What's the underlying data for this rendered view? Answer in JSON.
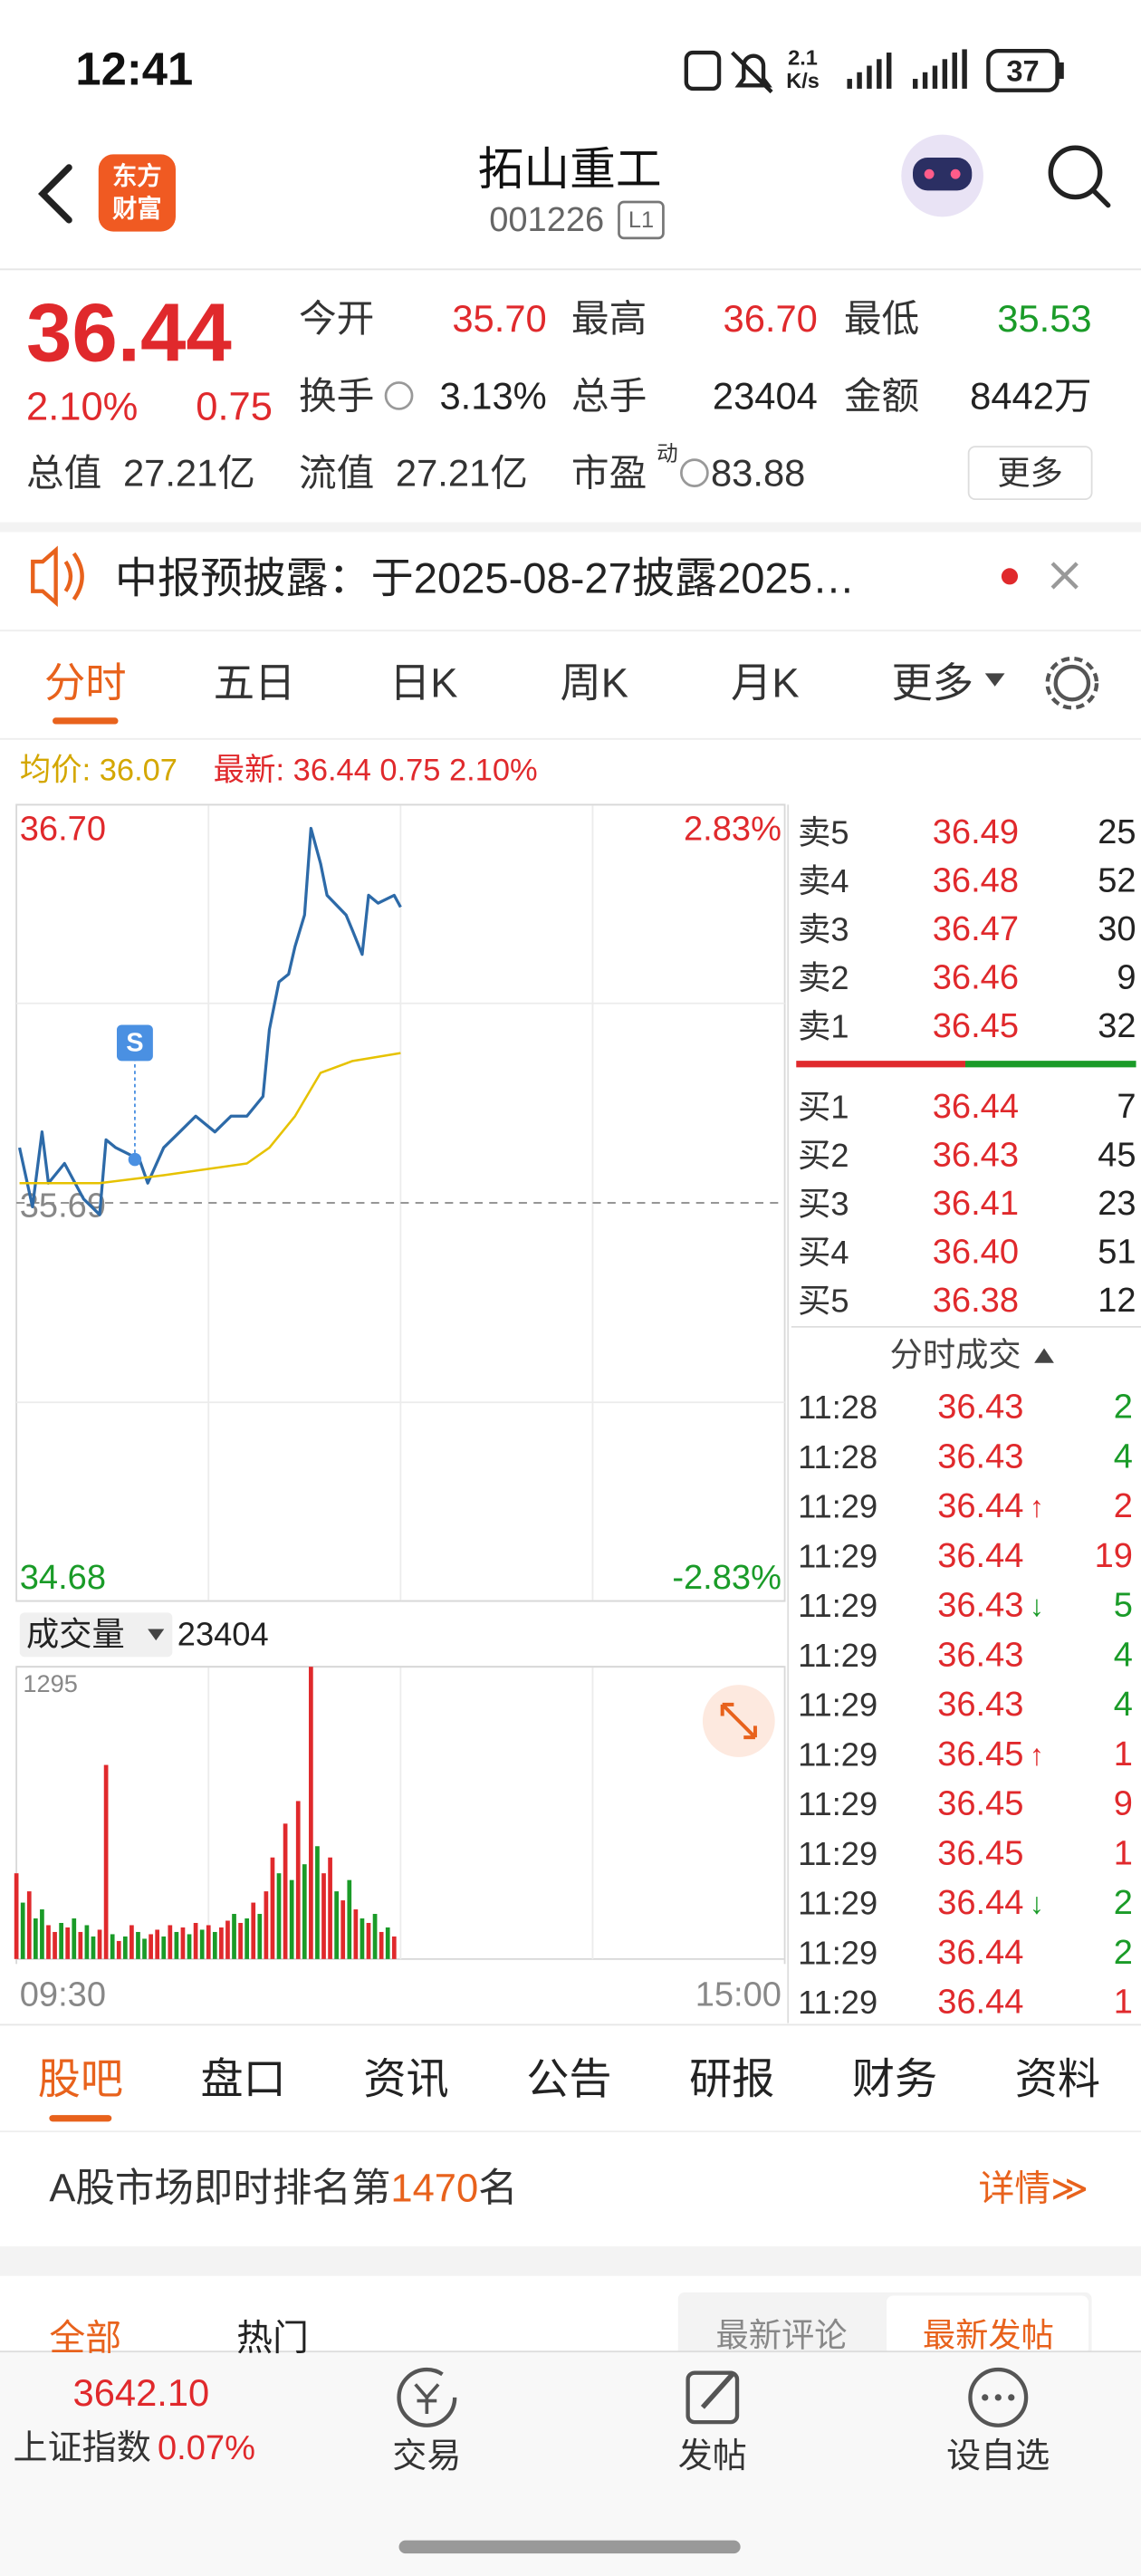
{
  "status_bar": {
    "time": "12:41",
    "net_speed": "2.1",
    "net_unit": "K/s",
    "battery": "37"
  },
  "header": {
    "logo": [
      "东方",
      "财富"
    ],
    "name": "拓山重工",
    "code": "001226",
    "badge": "L1"
  },
  "quote": {
    "price": "36.44",
    "change_pct": "2.10%",
    "change": "0.75",
    "fields": [
      {
        "label": "今开",
        "value": "35.70",
        "color": "#e0292c"
      },
      {
        "label": "最高",
        "value": "36.70",
        "color": "#e0292c"
      },
      {
        "label": "最低",
        "value": "35.53",
        "color": "#1a9b28"
      },
      {
        "label": "换手",
        "value": "3.13%",
        "color": "#222"
      },
      {
        "label": "总手",
        "value": "23404",
        "color": "#222"
      },
      {
        "label": "金额",
        "value": "8442万",
        "color": "#222"
      }
    ],
    "summary": [
      {
        "label": "总值",
        "value": "27.21亿"
      },
      {
        "label": "流值",
        "value": "27.21亿"
      },
      {
        "label": "市盈",
        "sup": "动",
        "value": "83.88"
      }
    ],
    "more": "更多"
  },
  "notice": "中报预披露：于2025-08-27披露2025…",
  "chart_tabs": {
    "items": [
      "分时",
      "五日",
      "日K",
      "周K",
      "月K",
      "更多"
    ],
    "active": 0
  },
  "chart_data": [
    {
      "type": "line",
      "legend": [
        "均价: 36.07",
        "最新: 36.44 0.75 2.10%"
      ],
      "legend_colors": [
        "#d4a700",
        "#e0292c"
      ],
      "xlim": [
        0,
        240
      ],
      "ylim": [
        34.68,
        36.7
      ],
      "yticks": [
        34.68,
        35.69,
        {
          "value": 36.7,
          "label": "36.70"
        }
      ],
      "y2lim": [
        -2.83,
        2.83
      ],
      "y2ticks": [
        {
          "value": -2.83,
          "label": "-2.83%"
        },
        {
          "value": 2.83,
          "label": "2.83%"
        }
      ],
      "series": [
        {
          "color": "#2d6aa8",
          "x": [
            1,
            5,
            8,
            10,
            15,
            21,
            26,
            28,
            31,
            36,
            38,
            41,
            46,
            51,
            56,
            62,
            67,
            72,
            77,
            79,
            82,
            85,
            87,
            90,
            92,
            95,
            97,
            103,
            105,
            108,
            110,
            113,
            118,
            120
          ],
          "values": [
            35.83,
            35.68,
            35.87,
            35.74,
            35.79,
            35.7,
            35.66,
            35.85,
            35.83,
            35.81,
            35.81,
            35.74,
            35.83,
            35.87,
            35.91,
            35.87,
            35.91,
            35.91,
            35.96,
            36.13,
            36.25,
            36.27,
            36.34,
            36.42,
            36.64,
            36.55,
            36.47,
            36.42,
            36.38,
            36.32,
            36.47,
            36.45,
            36.47,
            36.44
          ]
        },
        {
          "color": "#e6c200",
          "x": [
            1,
            26,
            46,
            72,
            79,
            87,
            95,
            105,
            120
          ],
          "values": [
            35.74,
            35.74,
            35.76,
            35.79,
            35.83,
            35.91,
            36.02,
            36.05,
            36.07
          ]
        }
      ],
      "signal": {
        "label": "S",
        "x": 37,
        "value": 35.8
      }
    },
    {
      "type": "bar",
      "title": "成交量",
      "subtitle": "23404",
      "xlim": [
        0,
        240
      ],
      "xticks": [
        {
          "value": 0,
          "label": "09:30"
        },
        {
          "value": 240,
          "label": "15:00"
        }
      ],
      "ylim": [
        0,
        1295
      ],
      "yticks": [
        1295
      ],
      "x": [
        0,
        2,
        4,
        6,
        8,
        10,
        12,
        14,
        16,
        18,
        20,
        22,
        24,
        26,
        28,
        30,
        32,
        34,
        36,
        38,
        40,
        42,
        44,
        46,
        48,
        50,
        52,
        54,
        56,
        58,
        60,
        62,
        64,
        66,
        68,
        70,
        72,
        74,
        76,
        78,
        80,
        82,
        84,
        86,
        88,
        90,
        92,
        94,
        96,
        98,
        100,
        102,
        104,
        106,
        108,
        110,
        112,
        114,
        116,
        118
      ],
      "values": [
        380,
        250,
        300,
        180,
        220,
        150,
        120,
        160,
        140,
        180,
        120,
        150,
        100,
        130,
        860,
        110,
        80,
        100,
        150,
        120,
        90,
        110,
        130,
        100,
        150,
        120,
        140,
        110,
        160,
        130,
        150,
        120,
        140,
        170,
        200,
        160,
        180,
        250,
        200,
        300,
        450,
        380,
        600,
        350,
        700,
        420,
        1295,
        500,
        380,
        450,
        300,
        260,
        350,
        220,
        180,
        160,
        200,
        120,
        140,
        100
      ],
      "colors": [
        "#e0292c",
        "#1a9b28",
        "#e0292c",
        "#1a9b28",
        "#1a9b28",
        "#e0292c",
        "#e0292c",
        "#1a9b28",
        "#e0292c",
        "#1a9b28",
        "#e0292c",
        "#1a9b28",
        "#1a9b28",
        "#e0292c",
        "#e0292c",
        "#1a9b28",
        "#e0292c",
        "#1a9b28",
        "#e0292c",
        "#1a9b28",
        "#1a9b28",
        "#e0292c",
        "#e0292c",
        "#1a9b28",
        "#e0292c",
        "#1a9b28",
        "#e0292c",
        "#1a9b28",
        "#e0292c",
        "#1a9b28",
        "#e0292c",
        "#1a9b28",
        "#e0292c",
        "#e0292c",
        "#1a9b28",
        "#e0292c",
        "#1a9b28",
        "#e0292c",
        "#1a9b28",
        "#e0292c",
        "#e0292c",
        "#1a9b28",
        "#e0292c",
        "#1a9b28",
        "#e0292c",
        "#1a9b28",
        "#e0292c",
        "#1a9b28",
        "#e0292c",
        "#e0292c",
        "#1a9b28",
        "#e0292c",
        "#1a9b28",
        "#e0292c",
        "#1a9b28",
        "#e0292c",
        "#1a9b28",
        "#e0292c",
        "#1a9b28",
        "#e0292c"
      ]
    }
  ],
  "order_book": {
    "asks": [
      {
        "label": "卖5",
        "price": "36.49",
        "qty": "25"
      },
      {
        "label": "卖4",
        "price": "36.48",
        "qty": "52"
      },
      {
        "label": "卖3",
        "price": "36.47",
        "qty": "30"
      },
      {
        "label": "卖2",
        "price": "36.46",
        "qty": "9"
      },
      {
        "label": "卖1",
        "price": "36.45",
        "qty": "32"
      }
    ],
    "bids": [
      {
        "label": "买1",
        "price": "36.44",
        "qty": "7"
      },
      {
        "label": "买2",
        "price": "36.43",
        "qty": "45"
      },
      {
        "label": "买3",
        "price": "36.41",
        "qty": "23"
      },
      {
        "label": "买4",
        "price": "36.40",
        "qty": "51"
      },
      {
        "label": "买5",
        "price": "36.38",
        "qty": "12"
      }
    ]
  },
  "trades": {
    "title": "分时成交",
    "rows": [
      {
        "time": "11:28",
        "price": "36.43",
        "qty": "2",
        "qty_color": "#1a9b28"
      },
      {
        "time": "11:28",
        "price": "36.43",
        "qty": "4",
        "qty_color": "#1a9b28"
      },
      {
        "time": "11:29",
        "price": "36.44",
        "arrow": "↑",
        "arrow_color": "#e0292c",
        "qty": "2",
        "qty_color": "#e0292c"
      },
      {
        "time": "11:29",
        "price": "36.44",
        "qty": "19",
        "qty_color": "#e0292c"
      },
      {
        "time": "11:29",
        "price": "36.43",
        "arrow": "↓",
        "arrow_color": "#1a9b28",
        "qty": "5",
        "qty_color": "#1a9b28"
      },
      {
        "time": "11:29",
        "price": "36.43",
        "qty": "4",
        "qty_color": "#1a9b28"
      },
      {
        "time": "11:29",
        "price": "36.43",
        "qty": "4",
        "qty_color": "#1a9b28"
      },
      {
        "time": "11:29",
        "price": "36.45",
        "arrow": "↑",
        "arrow_color": "#e0292c",
        "qty": "1",
        "qty_color": "#e0292c"
      },
      {
        "time": "11:29",
        "price": "36.45",
        "qty": "9",
        "qty_color": "#e0292c"
      },
      {
        "time": "11:29",
        "price": "36.45",
        "qty": "1",
        "qty_color": "#e0292c"
      },
      {
        "time": "11:29",
        "price": "36.44",
        "arrow": "↓",
        "arrow_color": "#1a9b28",
        "qty": "2",
        "qty_color": "#1a9b28"
      },
      {
        "time": "11:29",
        "price": "36.44",
        "qty": "2",
        "qty_color": "#1a9b28"
      },
      {
        "time": "11:29",
        "price": "36.44",
        "qty": "1",
        "qty_color": "#e0292c"
      }
    ]
  },
  "stock_tabs": {
    "items": [
      "股吧",
      "盘口",
      "资讯",
      "公告",
      "研报",
      "财务",
      "资料"
    ],
    "active": 0
  },
  "ranking": {
    "prefix": "A股市场即时排名第",
    "rank": "1470",
    "suffix": "名",
    "detail": "详情≫"
  },
  "post_tabs": {
    "left": [
      "全部",
      "热门"
    ],
    "right": [
      "最新评论",
      "最新发帖"
    ]
  },
  "bottom_bar": {
    "index_value": "3642.10",
    "index_name": "上证指数",
    "index_change": "0.07%",
    "items": [
      "交易",
      "发帖",
      "设自选"
    ]
  }
}
